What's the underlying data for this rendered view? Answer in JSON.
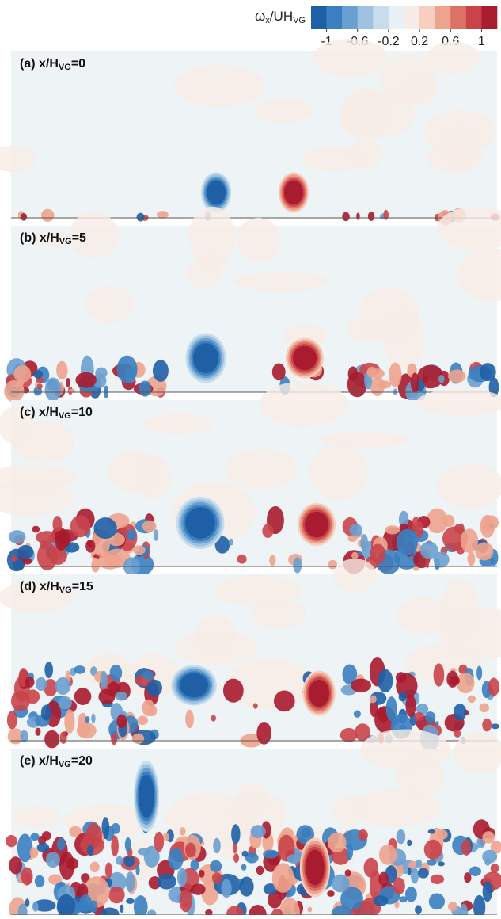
{
  "colorbar": {
    "label": {
      "symbol": "ω",
      "symbol_sub": "x",
      "middle": "/UH",
      "middle_sub": "VG"
    },
    "lim": [
      -1.2,
      1.2
    ],
    "ticks": [
      -1,
      -0.6,
      -0.2,
      0.2,
      0.6,
      1
    ],
    "colors": [
      "#1f5fa6",
      "#3a7fc0",
      "#6aa0cf",
      "#9ec3e0",
      "#c7dcec",
      "#e8eff5",
      "#f7ebe6",
      "#f6cfc0",
      "#eda38d",
      "#dc7263",
      "#c9444a",
      "#a91b2f"
    ]
  },
  "panels": [
    {
      "label": "(a) x/H",
      "sub": "VG",
      "suffix": "=0"
    },
    {
      "label": "(b) x/H",
      "sub": "VG",
      "suffix": "=5"
    },
    {
      "label": "(c) x/H",
      "sub": "VG",
      "suffix": "=10"
    },
    {
      "label": "(d) x/H",
      "sub": "VG",
      "suffix": "=15"
    },
    {
      "label": "(e) x/H",
      "sub": "VG",
      "suffix": "=20"
    }
  ]
}
